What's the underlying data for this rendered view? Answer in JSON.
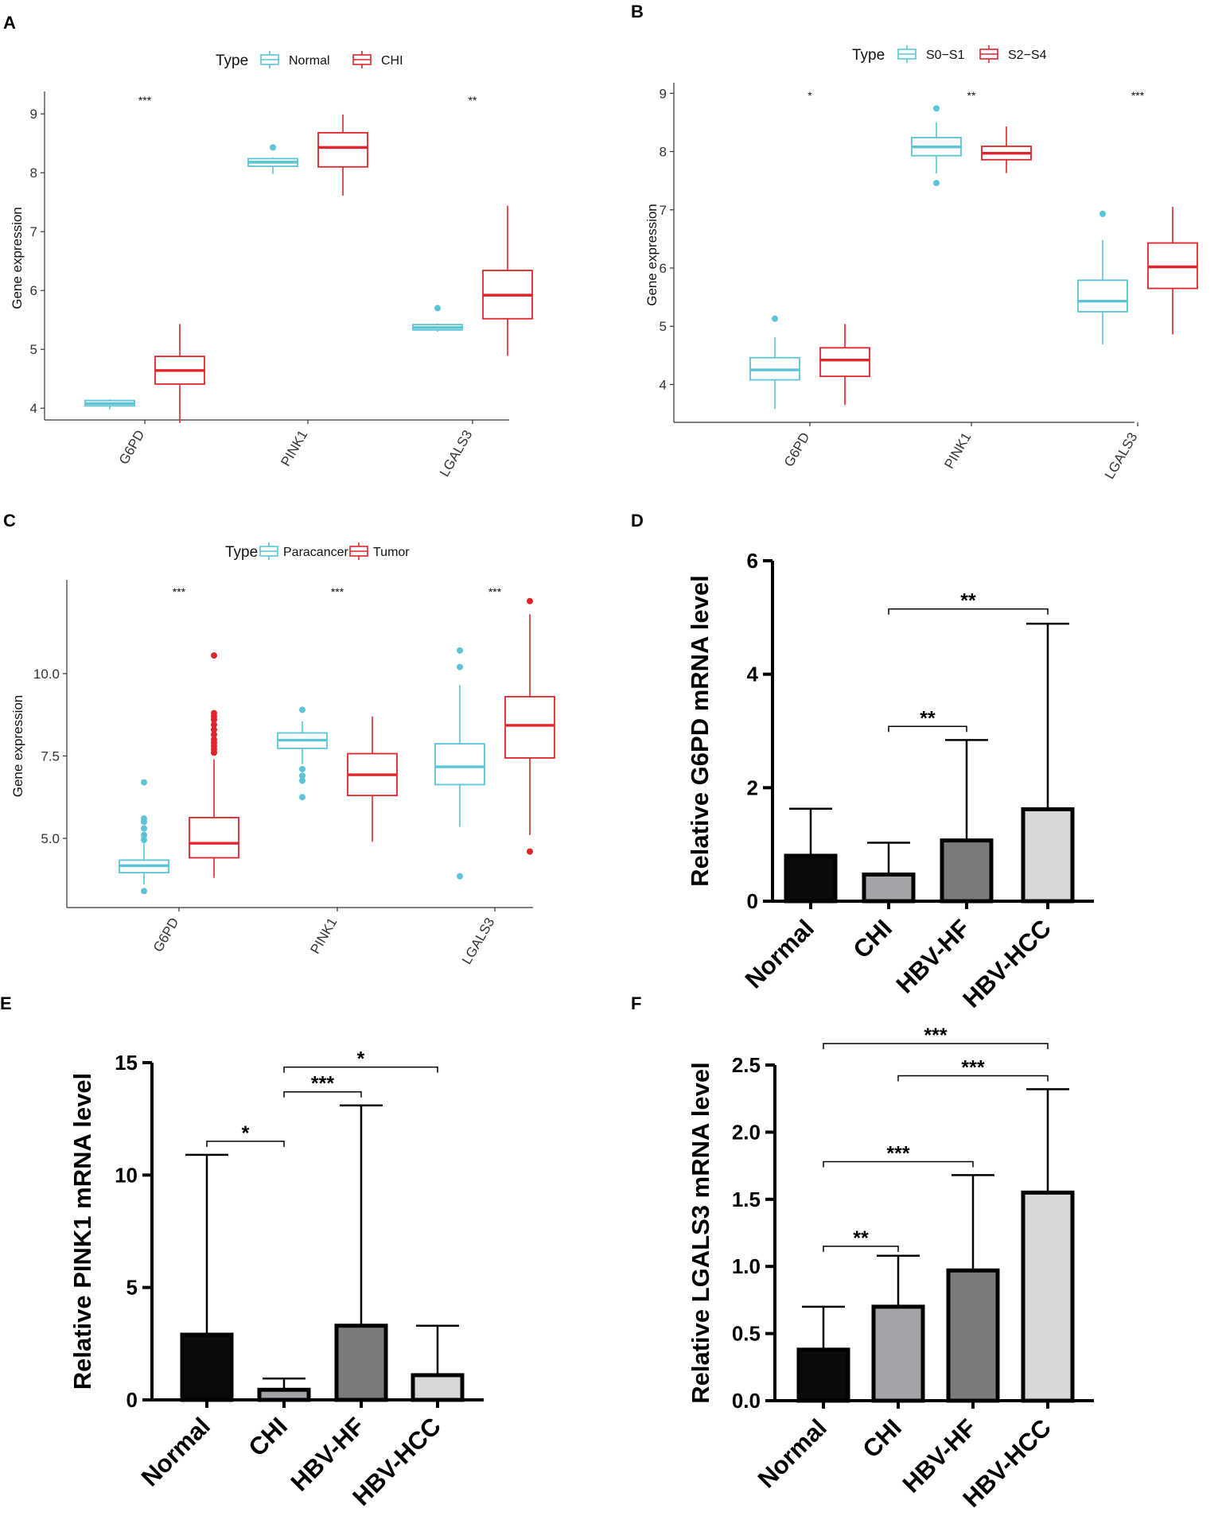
{
  "colors": {
    "normal_group": "#5bc4d6",
    "disease_group": "#e0252b",
    "bar_black": "#0a0a0a",
    "bar_gray_mid": "#a3a3a8",
    "bar_gray_dark": "#7b7b7b",
    "bar_gray_light": "#d8d8d8"
  },
  "chart_data": [
    {
      "panel": "A",
      "type": "box",
      "legend": {
        "title": "Type",
        "items": [
          "Normal",
          "CHI"
        ]
      },
      "ylabel": "Gene expression",
      "ylim": [
        3.8,
        9.3
      ],
      "yticks": [
        "4",
        "5",
        "6",
        "7",
        "8",
        "9"
      ],
      "categories": [
        "G6PD",
        "PINK1",
        "LGALS3"
      ],
      "significance": [
        "***",
        "",
        "**"
      ],
      "series": [
        {
          "name": "Normal",
          "boxes": [
            {
              "min": 3.98,
              "q1": 4.04,
              "median": 4.08,
              "q3": 4.13,
              "max": 4.15,
              "outliers": []
            },
            {
              "min": 7.98,
              "q1": 8.11,
              "median": 8.18,
              "q3": 8.24,
              "max": 8.26,
              "outliers": [
                8.43
              ]
            },
            {
              "min": 5.3,
              "q1": 5.33,
              "median": 5.37,
              "q3": 5.42,
              "max": 5.44,
              "outliers": [
                5.7
              ]
            }
          ]
        },
        {
          "name": "CHI",
          "boxes": [
            {
              "min": 3.75,
              "q1": 4.41,
              "median": 4.64,
              "q3": 4.88,
              "max": 5.43,
              "outliers": []
            },
            {
              "min": 7.61,
              "q1": 8.1,
              "median": 8.43,
              "q3": 8.68,
              "max": 8.99,
              "outliers": []
            },
            {
              "min": 4.89,
              "q1": 5.52,
              "median": 5.92,
              "q3": 6.34,
              "max": 7.44,
              "outliers": []
            }
          ]
        }
      ]
    },
    {
      "panel": "B",
      "type": "box",
      "legend": {
        "title": "Type",
        "items": [
          "S0−S1",
          "S2−S4"
        ]
      },
      "ylabel": "Gene expression",
      "ylim": [
        3.35,
        9.1
      ],
      "yticks": [
        "4",
        "5",
        "6",
        "7",
        "8",
        "9"
      ],
      "categories": [
        "G6PD",
        "PINK1",
        "LGALS3"
      ],
      "significance": [
        "*",
        "**",
        "***"
      ],
      "series": [
        {
          "name": "S0−S1",
          "boxes": [
            {
              "min": 3.58,
              "q1": 4.08,
              "median": 4.25,
              "q3": 4.46,
              "max": 4.81,
              "outliers": [
                5.13
              ]
            },
            {
              "min": 7.62,
              "q1": 7.93,
              "median": 8.08,
              "q3": 8.24,
              "max": 8.5,
              "outliers": [
                8.74,
                7.46
              ]
            },
            {
              "min": 4.69,
              "q1": 5.25,
              "median": 5.43,
              "q3": 5.79,
              "max": 6.48,
              "outliers": [
                6.93
              ]
            }
          ]
        },
        {
          "name": "S2−S4",
          "boxes": [
            {
              "min": 3.65,
              "q1": 4.14,
              "median": 4.42,
              "q3": 4.63,
              "max": 5.04,
              "outliers": []
            },
            {
              "min": 7.63,
              "q1": 7.86,
              "median": 7.97,
              "q3": 8.09,
              "max": 8.43,
              "outliers": []
            },
            {
              "min": 4.86,
              "q1": 5.65,
              "median": 6.02,
              "q3": 6.43,
              "max": 7.05,
              "outliers": []
            }
          ]
        }
      ]
    },
    {
      "panel": "C",
      "type": "box",
      "legend": {
        "title": "Type",
        "items": [
          "Paracancer",
          "Tumor"
        ]
      },
      "ylabel": "Gene expression",
      "ylim": [
        2.9,
        12.7
      ],
      "yticks": [
        "5.0",
        "7.5",
        "10.0"
      ],
      "ytick_values": [
        5.0,
        7.5,
        10.0
      ],
      "categories": [
        "G6PD",
        "PINK1",
        "LGALS3"
      ],
      "significance": [
        "***",
        "***",
        "***"
      ],
      "series": [
        {
          "name": "Paracancer",
          "boxes": [
            {
              "min": 3.6,
              "q1": 3.96,
              "median": 4.17,
              "q3": 4.34,
              "max": 4.85,
              "outliers": [
                6.7,
                5.6,
                5.5,
                5.3,
                5.1,
                4.95,
                3.4
              ]
            },
            {
              "min": 7.25,
              "q1": 7.73,
              "median": 7.98,
              "q3": 8.2,
              "max": 8.55,
              "outliers": [
                8.9,
                7.1,
                6.9,
                6.75,
                6.25
              ]
            },
            {
              "min": 5.35,
              "q1": 6.63,
              "median": 7.17,
              "q3": 7.87,
              "max": 9.65,
              "outliers": [
                10.7,
                10.2,
                3.85
              ]
            }
          ]
        },
        {
          "name": "Tumor",
          "boxes": [
            {
              "min": 3.8,
              "q1": 4.41,
              "median": 4.85,
              "q3": 5.63,
              "max": 7.4,
              "outliers": [
                10.55,
                8.8,
                8.7,
                8.6,
                8.45,
                8.3,
                8.15,
                8.0,
                7.9,
                7.8,
                7.7,
                7.6
              ]
            },
            {
              "min": 4.9,
              "q1": 6.3,
              "median": 6.93,
              "q3": 7.57,
              "max": 8.7,
              "outliers": []
            },
            {
              "min": 5.1,
              "q1": 7.44,
              "median": 8.43,
              "q3": 9.3,
              "max": 11.8,
              "outliers": [
                12.2,
                4.6
              ]
            }
          ]
        }
      ]
    },
    {
      "panel": "D",
      "type": "bar",
      "ylabel": "Relative G6PD mRNA level",
      "ylim": [
        0,
        6
      ],
      "yticks": [
        "0",
        "2",
        "4",
        "6"
      ],
      "ytick_values": [
        0,
        2,
        4,
        6
      ],
      "categories": [
        "Normal",
        "CHI",
        "HBV-HF",
        "HBV-HCC"
      ],
      "values": [
        0.8,
        0.47,
        1.07,
        1.62
      ],
      "error_upper": [
        1.63,
        1.03,
        2.84,
        4.89
      ],
      "comparisons": [
        {
          "from": 1,
          "to": 2,
          "label": "**",
          "level": 3.08
        },
        {
          "from": 1,
          "to": 3,
          "label": "**",
          "level": 5.15
        }
      ]
    },
    {
      "panel": "E",
      "type": "bar",
      "ylabel": "Relative PINK1 mRNA level",
      "ylim": [
        0,
        15
      ],
      "yticks": [
        "0",
        "5",
        "10",
        "15"
      ],
      "ytick_values": [
        0,
        5,
        10,
        15
      ],
      "categories": [
        "Normal",
        "CHI",
        "HBV-HF",
        "HBV-HCC"
      ],
      "values": [
        2.9,
        0.45,
        3.3,
        1.1
      ],
      "error_upper": [
        10.9,
        0.95,
        13.1,
        3.3
      ],
      "comparisons": [
        {
          "from": 0,
          "to": 1,
          "label": "*",
          "level": 11.5
        },
        {
          "from": 1,
          "to": 2,
          "label": "***",
          "level": 13.7
        },
        {
          "from": 1,
          "to": 3,
          "label": "*",
          "level": 14.8
        }
      ]
    },
    {
      "panel": "F",
      "type": "bar",
      "ylabel": "Relative LGALS3 mRNA level",
      "ylim": [
        0,
        2.5
      ],
      "yticks": [
        "0.0",
        "0.5",
        "1.0",
        "1.5",
        "2.0",
        "2.5"
      ],
      "ytick_values": [
        0,
        0.5,
        1.0,
        1.5,
        2.0,
        2.5
      ],
      "categories": [
        "Normal",
        "CHI",
        "HBV-HF",
        "HBV-HCC"
      ],
      "values": [
        0.38,
        0.7,
        0.97,
        1.55
      ],
      "error_upper": [
        0.7,
        1.08,
        1.68,
        2.32
      ],
      "comparisons": [
        {
          "from": 0,
          "to": 1,
          "label": "**",
          "level": 1.15
        },
        {
          "from": 0,
          "to": 2,
          "label": "***",
          "level": 1.78
        },
        {
          "from": 1,
          "to": 3,
          "label": "***",
          "level": 2.42
        },
        {
          "from": 0,
          "to": 3,
          "label": "***",
          "level": 2.66
        }
      ]
    }
  ]
}
